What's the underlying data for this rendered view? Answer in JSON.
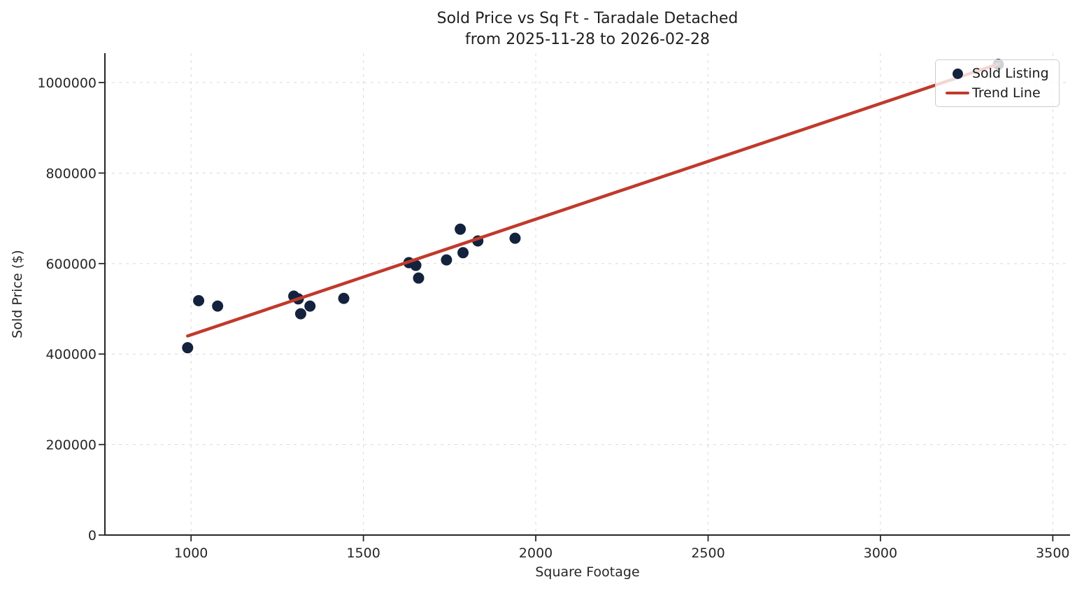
{
  "title": {
    "line1": "Sold Price vs Sq Ft - Taradale Detached",
    "line2": "from 2025-11-28 to 2026-02-28"
  },
  "legend": {
    "items": [
      {
        "label": "Sold Listing",
        "marker": "dot"
      },
      {
        "label": "Trend Line",
        "marker": "line"
      }
    ]
  },
  "colors": {
    "background": "#ffffff",
    "scatter": "#13233d",
    "trend": "#c03a2b",
    "grid": "#d9d9d9",
    "spine": "#262626",
    "text": "#262626"
  },
  "chart_data": {
    "type": "scatter",
    "title": "Sold Price vs Sq Ft - Taradale Detached",
    "subtitle": "from 2025-11-28 to 2026-02-28",
    "xlabel": "Square Footage",
    "ylabel": "Sold Price ($)",
    "xlim": [
      750,
      3550
    ],
    "ylim": [
      0,
      1065000
    ],
    "x_ticks": [
      1000,
      1500,
      2000,
      2500,
      3000,
      3500
    ],
    "y_ticks": [
      0,
      200000,
      400000,
      600000,
      800000,
      1000000
    ],
    "grid": true,
    "legend_position": "upper right",
    "series": [
      {
        "name": "Sold Listing",
        "type": "scatter",
        "color": "#13233d",
        "points": [
          [
            990,
            414000
          ],
          [
            1022,
            518000
          ],
          [
            1077,
            506000
          ],
          [
            1298,
            528000
          ],
          [
            1311,
            522000
          ],
          [
            1318,
            489000
          ],
          [
            1345,
            506000
          ],
          [
            1443,
            523000
          ],
          [
            1632,
            602000
          ],
          [
            1652,
            596000
          ],
          [
            1660,
            568000
          ],
          [
            1741,
            608000
          ],
          [
            1781,
            676000
          ],
          [
            1789,
            624000
          ],
          [
            1832,
            650000
          ],
          [
            1940,
            656000
          ],
          [
            3342,
            1040000
          ]
        ]
      },
      {
        "name": "Trend Line",
        "type": "line",
        "color": "#c03a2b",
        "points": [
          [
            990,
            440000
          ],
          [
            3342,
            1041000
          ]
        ]
      }
    ]
  }
}
